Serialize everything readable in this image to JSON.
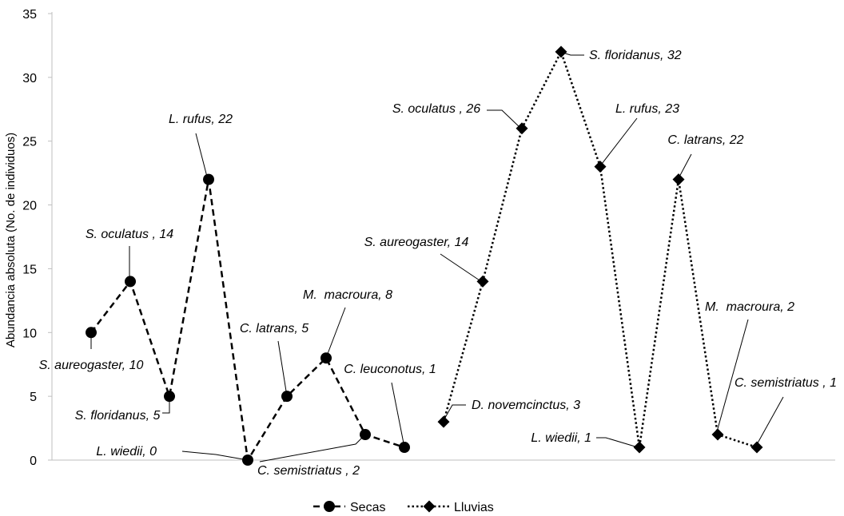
{
  "chart_data": {
    "type": "line",
    "title": "",
    "xlabel": "",
    "ylabel": "Abundancia absoluta (No. de individuos)",
    "ylim": [
      0,
      35
    ],
    "yticks": [
      0,
      5,
      10,
      15,
      20,
      25,
      30,
      35
    ],
    "grid": false,
    "legend_position": "bottom",
    "series": [
      {
        "name": "Secas",
        "line_style": "dashed",
        "marker": "circle",
        "color": "#000000",
        "points": [
          {
            "x": 1,
            "y": 10,
            "label": "S. aureogaster, 10"
          },
          {
            "x": 2,
            "y": 14,
            "label": "S. oculatus , 14"
          },
          {
            "x": 3,
            "y": 5,
            "label": "S. floridanus, 5"
          },
          {
            "x": 4,
            "y": 22,
            "label": "L. rufus, 22"
          },
          {
            "x": 5,
            "y": 0,
            "label": "L. wiedii, 0"
          },
          {
            "x": 6,
            "y": 5,
            "label": "C. latrans, 5"
          },
          {
            "x": 7,
            "y": 8,
            "label": "M.  macroura, 8"
          },
          {
            "x": 8,
            "y": 2,
            "label": "C. semistriatus , 2"
          },
          {
            "x": 9,
            "y": 1,
            "label": "C. leuconotus, 1"
          }
        ]
      },
      {
        "name": "Lluvias",
        "line_style": "dotted",
        "marker": "diamond",
        "color": "#000000",
        "points": [
          {
            "x": 10,
            "y": 3,
            "label": "D. novemcinctus, 3"
          },
          {
            "x": 11,
            "y": 14,
            "label": "S. aureogaster, 14"
          },
          {
            "x": 12,
            "y": 26,
            "label": "S. oculatus , 26"
          },
          {
            "x": 13,
            "y": 32,
            "label": "S. floridanus, 32"
          },
          {
            "x": 14,
            "y": 23,
            "label": "L. rufus, 23"
          },
          {
            "x": 15,
            "y": 1,
            "label": "L. wiedii, 1"
          },
          {
            "x": 16,
            "y": 22,
            "label": "C. latrans, 22"
          },
          {
            "x": 17,
            "y": 2,
            "label": "M.  macroura, 2"
          },
          {
            "x": 18,
            "y": 1,
            "label": "C. semistriatus , 1"
          }
        ]
      }
    ]
  }
}
